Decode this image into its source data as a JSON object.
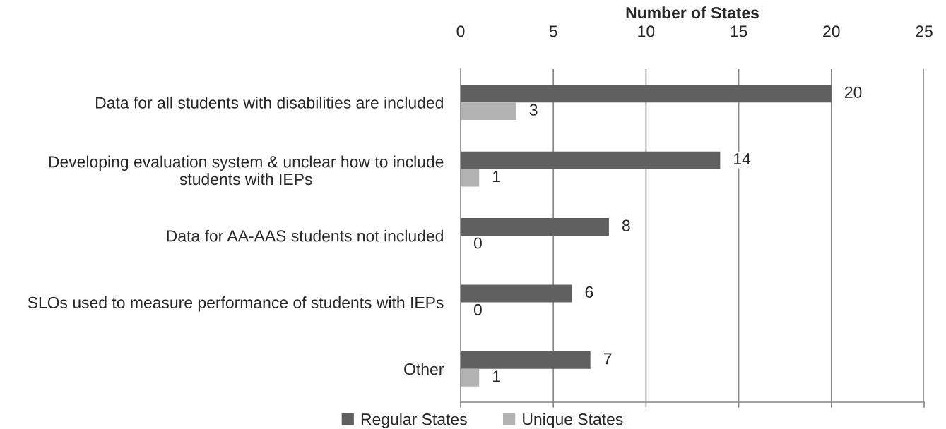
{
  "chart_data": {
    "type": "bar",
    "orientation": "horizontal",
    "xlabel": "Number of States",
    "categories": [
      "Data for all students with disabilities are included",
      "Developing evaluation system & unclear how to include\nstudents with IEPs",
      "Data for AA-AAS students not included",
      "SLOs used to measure performance of students with IEPs",
      "Other"
    ],
    "series": [
      {
        "name": "Regular States",
        "color": "#606060",
        "values": [
          20,
          14,
          8,
          6,
          7
        ]
      },
      {
        "name": "Unique States",
        "color": "#b3b3b3",
        "values": [
          3,
          1,
          0,
          0,
          1
        ]
      }
    ],
    "xlim": [
      0,
      25
    ],
    "xticks": [
      0,
      5,
      10,
      15,
      20,
      25
    ],
    "grid": "x",
    "legend": "bottom",
    "data_labels": true
  }
}
